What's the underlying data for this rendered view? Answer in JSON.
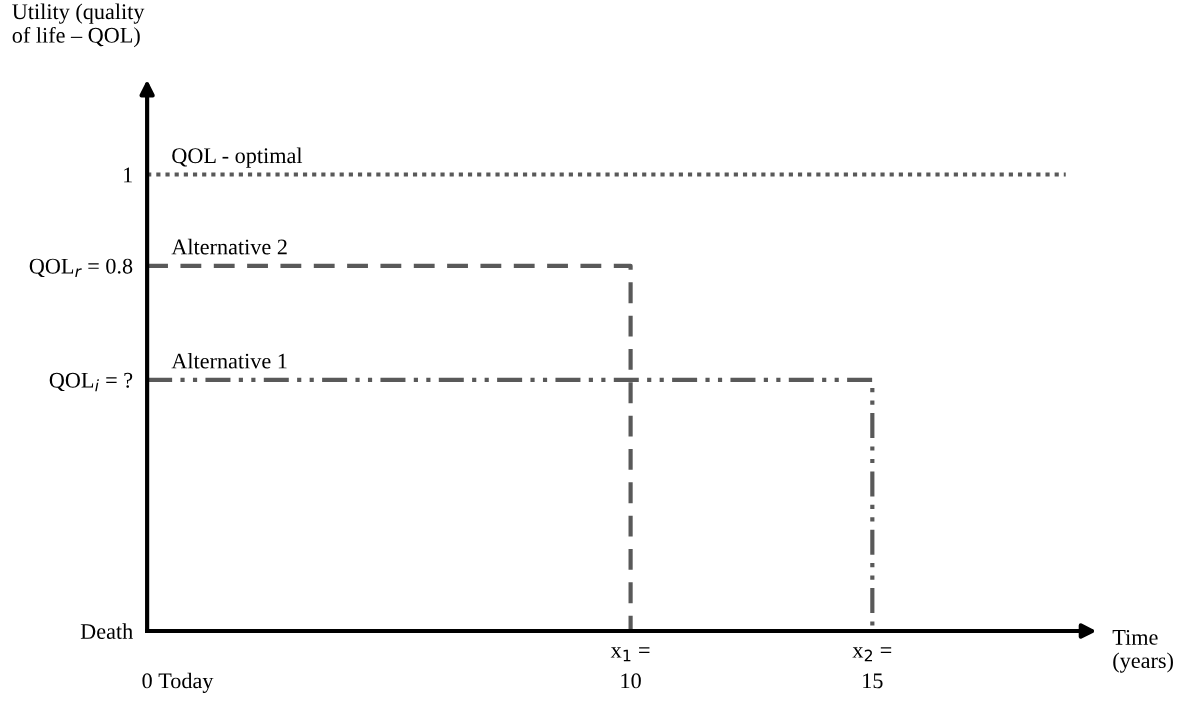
{
  "chart_data": {
    "type": "line",
    "xlabel": "Time\n(years)",
    "ylabel": "Utility (quality\nof life – QOL)",
    "series": [
      {
        "name": "QOL - optimal",
        "color": "#595959",
        "x": [
          0,
          19
        ],
        "values": [
          1,
          1
        ],
        "line_style": "dotted"
      },
      {
        "name": "Alternative 2",
        "color": "#595959",
        "x": [
          0,
          10,
          10
        ],
        "values": [
          0.8,
          0.8,
          0
        ],
        "line_style": "dashed"
      },
      {
        "name": "Alternative 1",
        "color": "#595959",
        "x": [
          0,
          15,
          15
        ],
        "values": [
          0.55,
          0.55,
          0
        ],
        "line_style": "dashdot"
      }
    ],
    "xlim": [
      0,
      19.5
    ],
    "ylim": [
      0,
      1.19
    ],
    "xticks": [
      0,
      10,
      15
    ],
    "yticks": [
      {
        "value": 0,
        "label": "Death"
      },
      {
        "value": 0.55,
        "label": "QOL$_{i}$ = ?"
      },
      {
        "value": 0.8,
        "label": "QOL$_{r}$ = 0.8"
      },
      {
        "value": 1,
        "label": "1"
      }
    ],
    "annotations": [
      "Today",
      {
        "text": "x$_{1}$ =",
        "x": 10,
        "y": 0
      },
      {
        "text": "x$_{2}$ =",
        "x": 15,
        "y": 0
      }
    ],
    "grid": false,
    "legend": false,
    "marker": "none"
  }
}
